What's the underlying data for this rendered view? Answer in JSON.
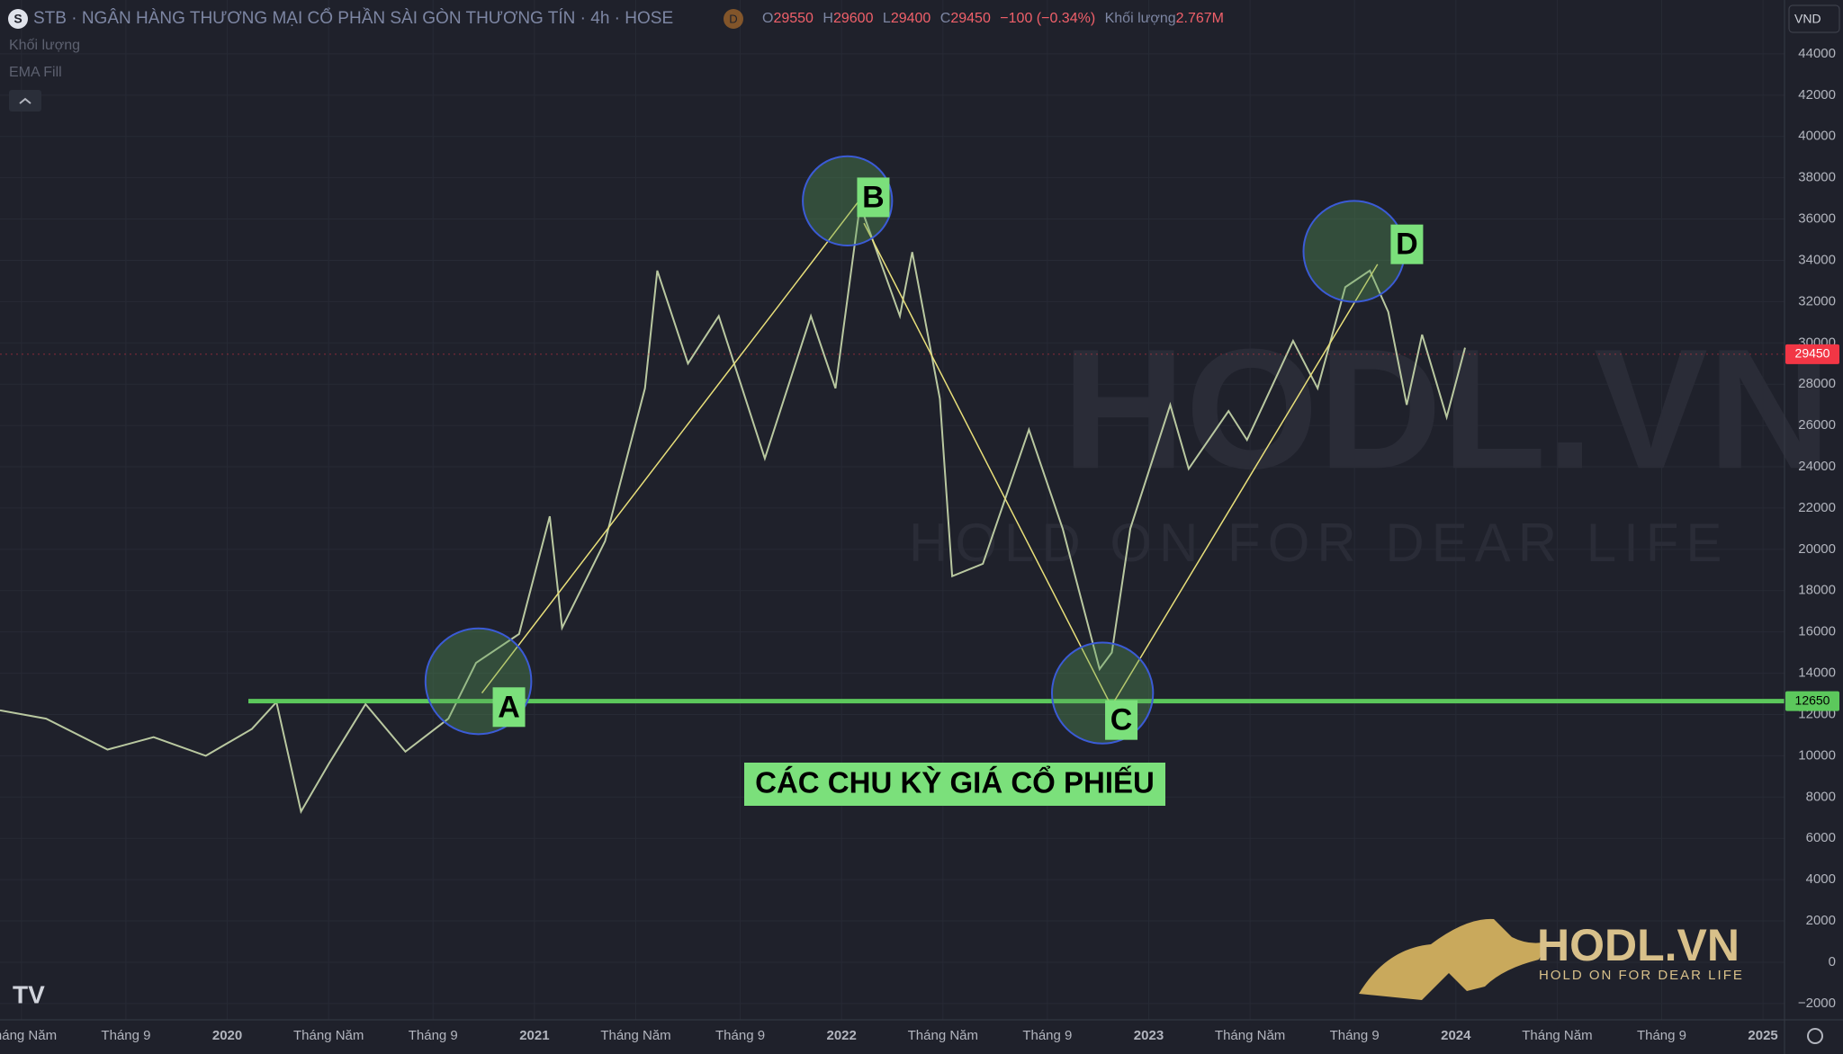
{
  "header": {
    "symbol": "STB · NGÂN HÀNG THƯƠNG MẠI CỔ PHẦN SÀI GÒN THƯƠNG TÍN · 4h · HOSE",
    "badge": "D",
    "o_label": "O",
    "open": 29550,
    "h_label": "H",
    "high": 29600,
    "l_label": "L",
    "low": 29400,
    "c_label": "C",
    "close": 29450,
    "change": "−100 (−0.34%)",
    "volume_label": "Khối lượng",
    "volume": "2.767M",
    "currency": "VND"
  },
  "indicators": [
    "Khối lượng",
    "EMA Fill"
  ],
  "watermark": {
    "brand": "HODL.VN",
    "slogan": "HOLD ON FOR DEAR LIFE"
  },
  "chart_data": {
    "type": "line",
    "annotation_title": "CÁC CHU KỲ GIÁ CỔ PHIẾU",
    "points": [
      "A",
      "B",
      "C",
      "D"
    ],
    "xlim": [
      2019.26,
      2025.07
    ],
    "ylim": [
      -2790,
      46610
    ],
    "xticks": [
      {
        "value": 2019.33,
        "label": "Tháng Năm"
      },
      {
        "value": 2019.67,
        "label": "Tháng 9"
      },
      2020,
      {
        "value": 2020.33,
        "label": "Tháng Năm"
      },
      {
        "value": 2020.67,
        "label": "Tháng 9"
      },
      2021,
      {
        "value": 2021.33,
        "label": "Tháng Năm"
      },
      {
        "value": 2021.67,
        "label": "Tháng 9"
      },
      2022,
      {
        "value": 2022.33,
        "label": "Tháng Năm"
      },
      {
        "value": 2022.67,
        "label": "Tháng 9"
      },
      2023,
      {
        "value": 2023.33,
        "label": "Tháng Năm"
      },
      {
        "value": 2023.67,
        "label": "Tháng 9"
      },
      2024,
      {
        "value": 2024.33,
        "label": "Tháng Năm"
      },
      {
        "value": 2024.67,
        "label": "Tháng 9"
      },
      2025
    ],
    "yticks": [
      {
        "value": -2000,
        "label": "−2000"
      },
      0,
      2000,
      4000,
      6000,
      8000,
      10000,
      12000,
      14000,
      16000,
      18000,
      20000,
      22000,
      24000,
      26000,
      28000,
      30000,
      32000,
      34000,
      36000,
      38000,
      40000,
      42000,
      44000
    ],
    "grid": true,
    "x": [
      2019.26,
      2019.41,
      2019.61,
      2019.76,
      2019.93,
      2020.08,
      2020.16,
      2020.24,
      2020.33,
      2020.45,
      2020.58,
      2020.72,
      2020.81,
      2020.95,
      2021.05,
      2021.09,
      2021.23,
      2021.36,
      2021.4,
      2021.5,
      2021.6,
      2021.75,
      2021.9,
      2021.98,
      2022.06,
      2022.19,
      2022.23,
      2022.32,
      2022.36,
      2022.46,
      2022.61,
      2022.72,
      2022.84,
      2022.88,
      2022.94,
      2023.07,
      2023.13,
      2023.26,
      2023.32,
      2023.47,
      2023.55,
      2023.64,
      2023.72,
      2023.78,
      2023.84,
      2023.89,
      2023.97,
      2024.03
    ],
    "series": [
      {
        "name": "STB",
        "color": "#b9c8a0",
        "values": [
          12200,
          11800,
          10300,
          10900,
          10000,
          11300,
          12600,
          7300,
          9600,
          12500,
          10200,
          11800,
          14500,
          15900,
          21600,
          16200,
          20400,
          27800,
          33500,
          29000,
          31300,
          24400,
          31300,
          27800,
          36700,
          31300,
          34400,
          27300,
          18700,
          19300,
          25800,
          21000,
          14200,
          15000,
          21000,
          27000,
          23900,
          26700,
          25300,
          30100,
          27800,
          32700,
          33500,
          31500,
          27000,
          30400,
          26400,
          29770
        ]
      }
    ],
    "last_price": 29450,
    "support_level": 12650,
    "support_color": "#5cc85c"
  }
}
